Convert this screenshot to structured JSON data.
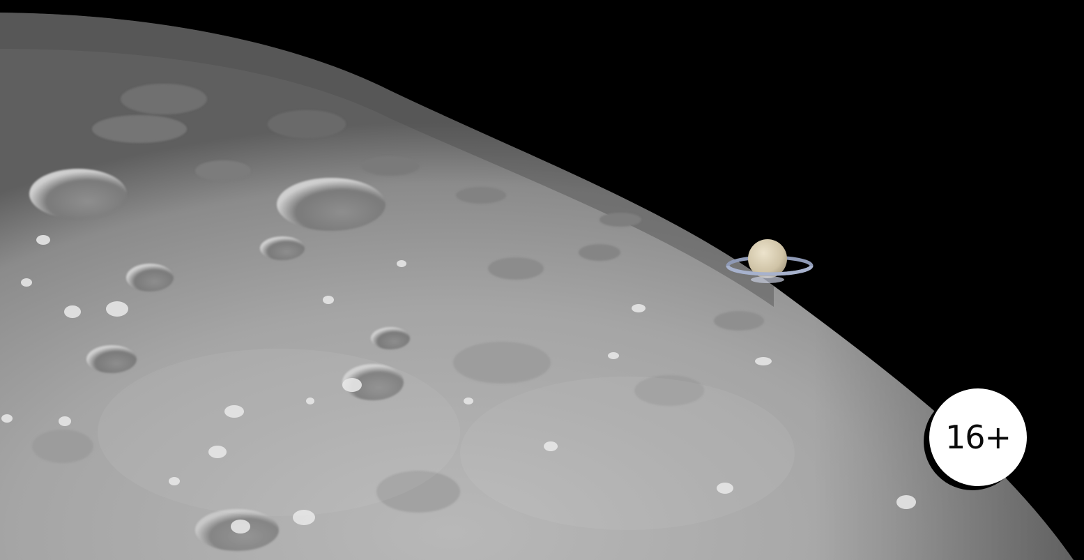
{
  "scene": {
    "subjects": [
      "moon-surface-icon",
      "saturn-icon"
    ],
    "colors": {
      "sky": "#000000",
      "moon_light": "#b3b3b3",
      "moon_dark": "#5e5e5e",
      "saturn_body": "#d9cfb7",
      "saturn_ring": "#9aa6c4"
    }
  },
  "badge": {
    "label": "16+",
    "background": "#ffffff",
    "text_color": "#0b0b0b"
  }
}
